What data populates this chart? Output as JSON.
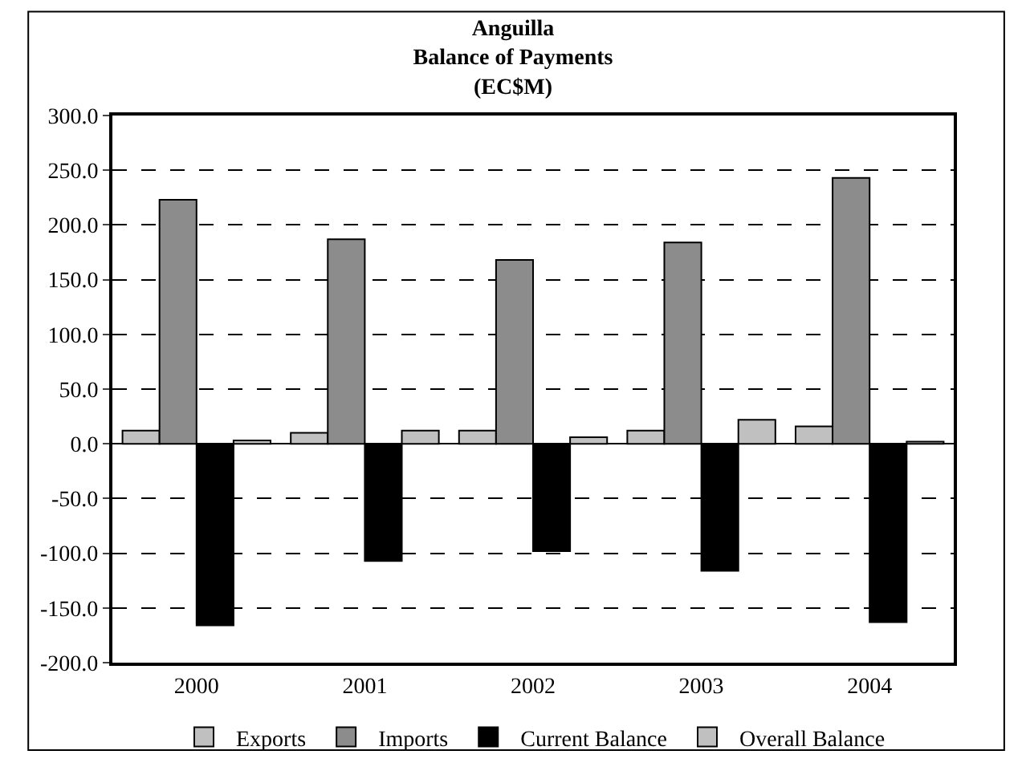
{
  "chart_data": {
    "type": "bar",
    "title": "Anguilla\nBalance of Payments\n(EC$M)",
    "categories": [
      "2000",
      "2001",
      "2002",
      "2003",
      "2004"
    ],
    "series": [
      {
        "name": "Exports",
        "color": "#c0c0c0",
        "values": [
          12,
          10,
          12,
          12,
          16
        ]
      },
      {
        "name": "Imports",
        "color": "#8c8c8c",
        "values": [
          223,
          187,
          168,
          184,
          243
        ]
      },
      {
        "name": "Current Balance",
        "color": "#000000",
        "values": [
          -166,
          -107,
          -98,
          -116,
          -163
        ]
      },
      {
        "name": "Overall Balance",
        "color": "#c0c0c0",
        "values": [
          3,
          12,
          6,
          22,
          2
        ]
      }
    ],
    "ylim": [
      -200,
      300
    ],
    "yticks": [
      {
        "value": -200,
        "label": "-200.0"
      },
      {
        "value": -150,
        "label": "-150.0"
      },
      {
        "value": -100,
        "label": "-100.0"
      },
      {
        "value": -50,
        "label": "-50.0"
      },
      {
        "value": 0,
        "label": "0.0"
      },
      {
        "value": 50,
        "label": "50.0"
      },
      {
        "value": 100,
        "label": "100.0"
      },
      {
        "value": 150,
        "label": "150.0"
      },
      {
        "value": 200,
        "label": "200.0"
      },
      {
        "value": 250,
        "label": "250.0"
      },
      {
        "value": 300,
        "label": "300.0"
      }
    ],
    "grid": "y",
    "legend": "bottom"
  }
}
